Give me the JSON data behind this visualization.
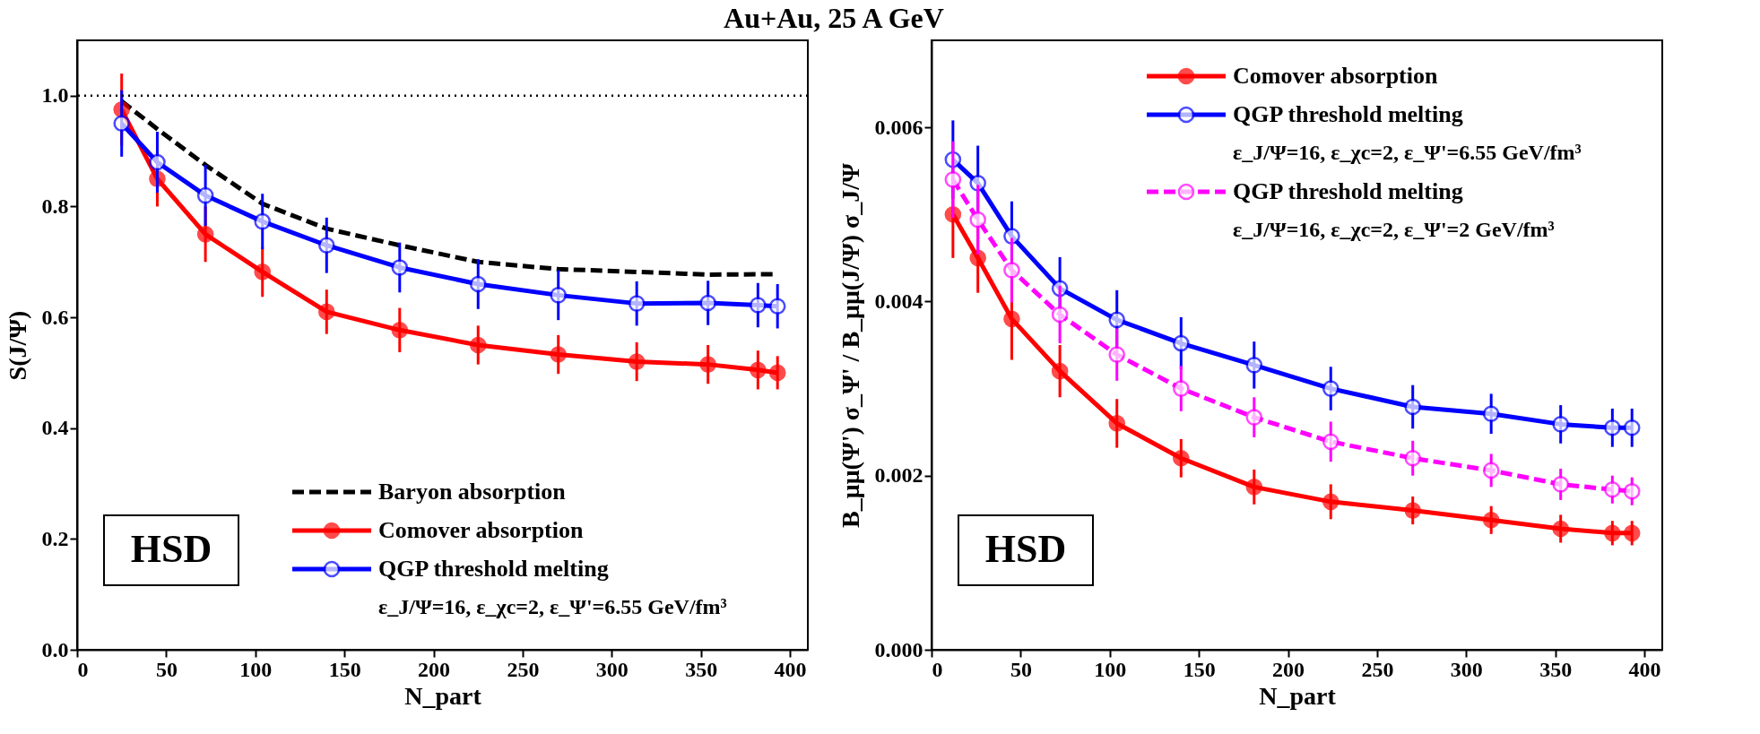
{
  "chart_data": [
    {
      "type": "line",
      "title": "Au+Au, 25 A GeV",
      "xlabel": "N_part",
      "ylabel": "S(J/Ψ)",
      "xlim": [
        0,
        410
      ],
      "ylim": [
        0,
        1.1
      ],
      "xticks": [
        0,
        50,
        100,
        150,
        200,
        250,
        300,
        350,
        400
      ],
      "yticks": [
        {
          "value": 0,
          "label": "0.0"
        },
        {
          "value": 0.2,
          "label": "0.2"
        },
        {
          "value": 0.4,
          "label": "0.4"
        },
        {
          "value": 0.6,
          "label": "0.6"
        },
        {
          "value": 0.8,
          "label": "0.8"
        },
        {
          "value": 1.0,
          "label": "1.0"
        }
      ],
      "grid": false,
      "legend": "bottom right",
      "ref_lines": [
        {
          "axis": "y",
          "value": 1.0,
          "color": "#000000",
          "line_style": "dotted"
        }
      ],
      "annotations": [
        "HSD",
        "ε_J/Ψ=16, ε_χc=2, ε_Ψ'=6.55 GeV/fm³"
      ],
      "series": [
        {
          "name": "Baryon absorption",
          "color": "#000000",
          "line_style": "dashed",
          "marker": "none",
          "x": [
            25,
            45,
            72,
            104,
            140,
            181,
            225,
            270,
            314,
            354,
            393
          ],
          "values": [
            0.99,
            0.94,
            0.875,
            0.805,
            0.76,
            0.73,
            0.7,
            0.687,
            0.682,
            0.677,
            0.678
          ]
        },
        {
          "name": "Comover absorption",
          "color": "#ff0000",
          "line_style": "solid",
          "marker": "circle",
          "x": [
            25,
            45,
            72,
            104,
            140,
            181,
            225,
            270,
            314,
            354,
            382,
            393
          ],
          "values": [
            0.975,
            0.85,
            0.75,
            0.682,
            0.61,
            0.577,
            0.55,
            0.533,
            0.52,
            0.515,
            0.505,
            0.5
          ],
          "errors": [
            0.065,
            0.05,
            0.05,
            0.045,
            0.04,
            0.04,
            0.035,
            0.035,
            0.035,
            0.035,
            0.035,
            0.03
          ]
        },
        {
          "name": "QGP threshold melting",
          "color": "#0000ff",
          "line_style": "solid",
          "marker": "circle",
          "x": [
            25,
            45,
            72,
            104,
            140,
            181,
            225,
            270,
            314,
            354,
            382,
            393
          ],
          "values": [
            0.95,
            0.88,
            0.82,
            0.773,
            0.73,
            0.69,
            0.66,
            0.64,
            0.625,
            0.626,
            0.622,
            0.62
          ],
          "errors": [
            0.06,
            0.055,
            0.055,
            0.05,
            0.05,
            0.045,
            0.045,
            0.045,
            0.04,
            0.04,
            0.04,
            0.04
          ]
        }
      ]
    },
    {
      "type": "line",
      "xlabel": "N_part",
      "ylabel": "B_μμ(Ψ') σ_Ψ' / B_μμ(J/Ψ) σ_J/Ψ",
      "xlim": [
        0,
        410
      ],
      "ylim": [
        0,
        0.007
      ],
      "xticks": [
        0,
        50,
        100,
        150,
        200,
        250,
        300,
        350,
        400
      ],
      "yticks": [
        {
          "value": 0,
          "label": "0.000"
        },
        {
          "value": 0.002,
          "label": "0.002"
        },
        {
          "value": 0.004,
          "label": "0.004"
        },
        {
          "value": 0.006,
          "label": "0.006"
        }
      ],
      "grid": false,
      "legend": "top right",
      "annotations": [
        "HSD",
        "ε_J/Ψ=16, ε_χc=2, ε_Ψ'=6.55 GeV/fm³",
        "ε_J/Ψ=16, ε_χc=2, ε_Ψ'=2 GeV/fm³"
      ],
      "series": [
        {
          "name": "Comover absorption",
          "color": "#ff0000",
          "line_style": "solid",
          "marker": "circle",
          "x": [
            12,
            26,
            45,
            72,
            104,
            140,
            181,
            224,
            270,
            314,
            353,
            382,
            393
          ],
          "values": [
            0.005,
            0.0045,
            0.0038,
            0.0032,
            0.0026,
            0.0022,
            0.00187,
            0.0017,
            0.0016,
            0.00149,
            0.00139,
            0.00134,
            0.00134
          ],
          "errors": [
            0.0005,
            0.0004,
            0.00047,
            0.0003,
            0.00028,
            0.00022,
            0.0002,
            0.0002,
            0.00016,
            0.00016,
            0.00016,
            0.00014,
            0.00014
          ]
        },
        {
          "name": "QGP threshold melting",
          "color": "#0000ff",
          "line_style": "solid",
          "marker": "circle",
          "x": [
            12,
            26,
            45,
            72,
            104,
            140,
            181,
            224,
            270,
            314,
            353,
            382,
            393
          ],
          "values": [
            0.00563,
            0.00536,
            0.00475,
            0.00415,
            0.00379,
            0.00352,
            0.00327,
            0.003,
            0.00279,
            0.00271,
            0.00259,
            0.00255,
            0.00255
          ],
          "errors": [
            0.00045,
            0.00043,
            0.0004,
            0.00036,
            0.00034,
            0.0003,
            0.00027,
            0.00025,
            0.00025,
            0.00023,
            0.00022,
            0.00022,
            0.00022
          ]
        },
        {
          "name": "QGP threshold melting",
          "color": "#ff00ff",
          "line_style": "dashed",
          "marker": "circle",
          "x": [
            12,
            26,
            45,
            72,
            104,
            140,
            181,
            224,
            270,
            314,
            353,
            382,
            393
          ],
          "values": [
            0.0054,
            0.00494,
            0.00436,
            0.00385,
            0.00339,
            0.003,
            0.00267,
            0.00239,
            0.0022,
            0.00206,
            0.0019,
            0.00184,
            0.00182
          ],
          "errors": [
            0.00044,
            0.0004,
            0.00037,
            0.00033,
            0.0003,
            0.00026,
            0.00023,
            0.00023,
            0.0002,
            0.00019,
            0.00018,
            0.00016,
            0.00016
          ]
        }
      ]
    }
  ]
}
